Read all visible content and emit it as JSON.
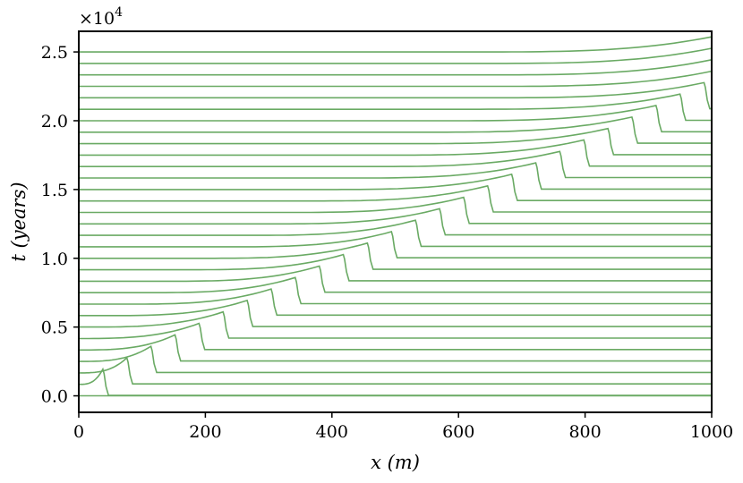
{
  "chart_data": {
    "type": "line",
    "title": "",
    "xlabel": "x (m)",
    "ylabel": "t (years)",
    "y_scale_label": "×10^4",
    "xlim": [
      0,
      1000
    ],
    "ylim": [
      -1200,
      26500
    ],
    "xticks": [
      0,
      200,
      400,
      600,
      800,
      1000
    ],
    "xtick_labels": [
      "0",
      "200",
      "400",
      "600",
      "800",
      "1000"
    ],
    "yticks": [
      0,
      5000,
      10000,
      15000,
      20000,
      25000
    ],
    "ytick_labels": [
      "0.0",
      "0.5",
      "1.0",
      "1.5",
      "2.0",
      "2.5"
    ],
    "grid": false,
    "line_color": "#6aaa64",
    "series_description": "waterfall of 31 profiles; each trace is baseline t_k = 833.33*k years, with a front at x_k = min(1000, 38*k) m",
    "baselines": [
      0,
      833,
      1667,
      2500,
      3333,
      4167,
      5000,
      5833,
      6667,
      7500,
      8333,
      9167,
      10000,
      10833,
      11667,
      12500,
      13333,
      14167,
      15000,
      15833,
      16667,
      17500,
      18333,
      19167,
      20000,
      20833,
      21667,
      22500,
      23333,
      24167,
      25000
    ],
    "front_x": [
      0,
      38,
      76,
      114,
      152,
      190,
      228,
      266,
      304,
      342,
      380,
      418,
      456,
      494,
      532,
      570,
      608,
      646,
      684,
      722,
      760,
      798,
      836,
      874,
      912,
      950,
      988,
      1000,
      1000,
      1000,
      1000
    ],
    "front_height": 1100,
    "plateau_offset": -800
  }
}
